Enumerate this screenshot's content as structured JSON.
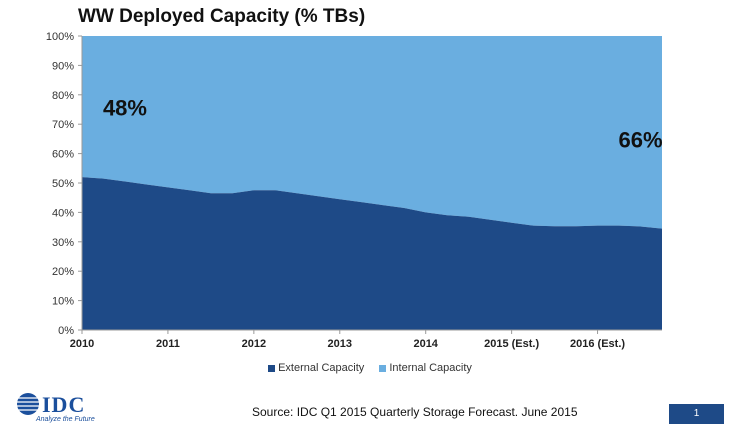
{
  "slide": {
    "title": "WW Deployed Capacity (% TBs)",
    "source": "Source: IDC Q1 2015 Quarterly Storage Forecast. June 2015",
    "page_number": "1",
    "logo": {
      "name": "IDC",
      "tagline": "Analyze the Future"
    }
  },
  "colors": {
    "external": "#1e4a87",
    "internal": "#6aaee0",
    "axis": "#999999"
  },
  "chart_data": {
    "type": "area",
    "title": "WW Deployed Capacity (% TBs)",
    "stacked": true,
    "percent": true,
    "x_tick_labels": [
      "2010",
      "2011",
      "2012",
      "2013",
      "2014",
      "2015 (Est.)",
      "2016 (Est.)"
    ],
    "y_tick_labels": [
      "0%",
      "10%",
      "20%",
      "30%",
      "40%",
      "50%",
      "60%",
      "70%",
      "80%",
      "90%",
      "100%"
    ],
    "ylim": [
      0,
      100
    ],
    "x": [
      2010.0,
      2010.25,
      2010.5,
      2010.75,
      2011.0,
      2011.25,
      2011.5,
      2011.75,
      2012.0,
      2012.25,
      2012.5,
      2012.75,
      2013.0,
      2013.25,
      2013.5,
      2013.75,
      2014.0,
      2014.25,
      2014.5,
      2014.75,
      2015.0,
      2015.25,
      2015.5,
      2015.75,
      2016.0,
      2016.25,
      2016.5,
      2016.75
    ],
    "series": [
      {
        "name": "External Capacity",
        "values": [
          52,
          51.5,
          50.5,
          49.5,
          48.5,
          47.5,
          46.5,
          46.5,
          47.5,
          47.5,
          46.5,
          45.5,
          44.5,
          43.5,
          42.5,
          41.5,
          40,
          39,
          38.5,
          37.5,
          36.5,
          35.5,
          35.3,
          35.3,
          35.5,
          35.5,
          35.2,
          34.5
        ]
      },
      {
        "name": "Internal Capacity",
        "values": [
          48,
          48.5,
          49.5,
          50.5,
          51.5,
          52.5,
          53.5,
          53.5,
          52.5,
          52.5,
          53.5,
          54.5,
          55.5,
          56.5,
          57.5,
          58.5,
          60,
          61,
          61.5,
          62.5,
          63.5,
          64.5,
          64.7,
          64.7,
          64.5,
          64.5,
          64.8,
          65.5
        ]
      }
    ],
    "annotations": [
      {
        "text": "48%"
      },
      {
        "text": "66%"
      }
    ],
    "legend": [
      "External Capacity",
      "Internal Capacity"
    ],
    "legend_position": "bottom",
    "grid": false
  }
}
